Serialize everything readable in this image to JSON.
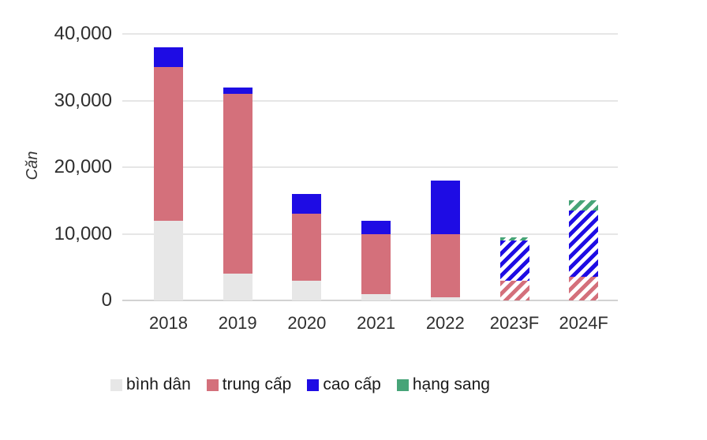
{
  "chart_data": {
    "type": "bar",
    "stacked": true,
    "title": "",
    "ylabel": "Căn",
    "categories": [
      "2018",
      "2019",
      "2020",
      "2021",
      "2022",
      "2023F",
      "2024F"
    ],
    "series": [
      {
        "name": "bình dân",
        "color": "#e7e7e7",
        "values": [
          12000,
          4000,
          3000,
          1000,
          500,
          0,
          0
        ]
      },
      {
        "name": "trung cấp",
        "color": "#d4707b",
        "values": [
          23000,
          27000,
          10000,
          9000,
          9500,
          3000,
          3500
        ]
      },
      {
        "name": "cao cấp",
        "color": "#1e0ce4",
        "values": [
          3000,
          1000,
          3000,
          2000,
          8000,
          6000,
          10000
        ]
      },
      {
        "name": "hạng sang",
        "color": "#47a478",
        "values": [
          0,
          0,
          0,
          0,
          0,
          500,
          1500
        ]
      }
    ],
    "forecast_categories": [
      "2023F",
      "2024F"
    ],
    "forecast_style": "diagonal-hatch",
    "y_ticks": [
      {
        "value": 0,
        "label": "0"
      },
      {
        "value": 10000,
        "label": "10,000"
      },
      {
        "value": 20000,
        "label": "20,000"
      },
      {
        "value": 30000,
        "label": "30,000"
      },
      {
        "value": 40000,
        "label": "40,000"
      }
    ],
    "ylim": [
      0,
      40000
    ],
    "grid": true,
    "legend_position": "bottom"
  }
}
